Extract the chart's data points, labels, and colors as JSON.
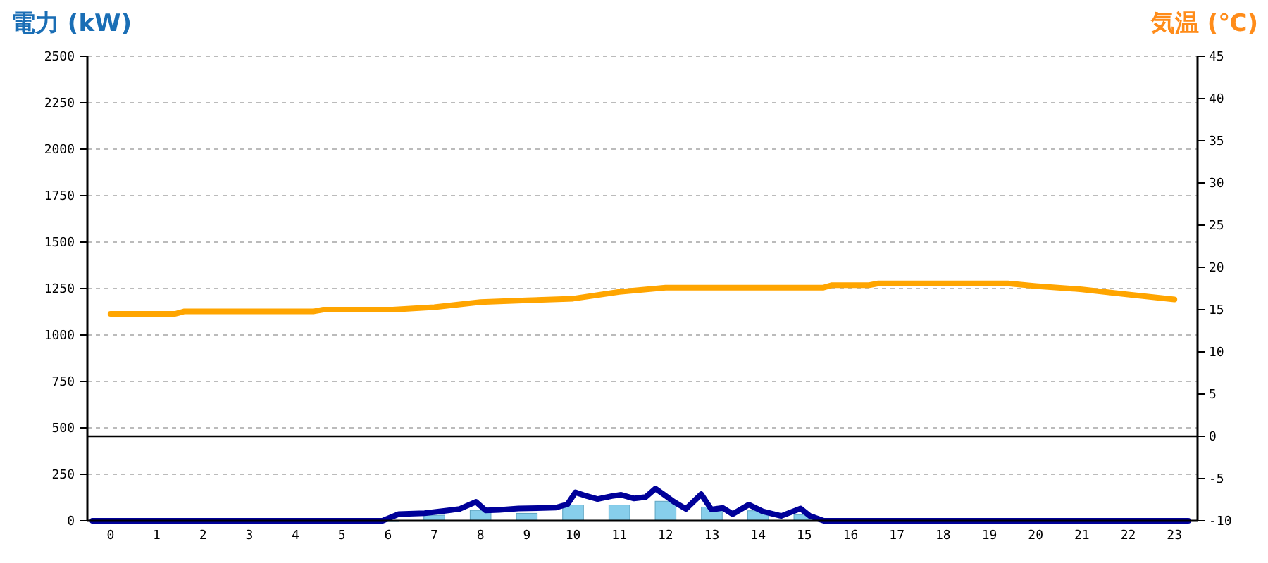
{
  "chart_data": {
    "type": "bar",
    "ylabel": "電力 (kW)",
    "y2label": "気温 (℃)",
    "x": [
      0,
      1,
      2,
      3,
      4,
      5,
      6,
      7,
      8,
      9,
      10,
      11,
      12,
      13,
      14,
      15,
      16,
      17,
      18,
      19,
      20,
      21,
      22,
      23
    ],
    "xlim": [
      -0.5,
      23.5
    ],
    "xticks": [
      0,
      1,
      2,
      3,
      4,
      5,
      6,
      7,
      8,
      9,
      10,
      11,
      12,
      13,
      14,
      15,
      16,
      17,
      18,
      19,
      20,
      21,
      22,
      23
    ],
    "ylim": [
      0,
      2500
    ],
    "yticks": [
      0,
      250,
      500,
      750,
      1000,
      1250,
      1500,
      1750,
      2000,
      2250,
      2500
    ],
    "y2lim": [
      -10,
      45
    ],
    "y2ticks": [
      -10,
      -5,
      0,
      5,
      10,
      15,
      20,
      25,
      30,
      35,
      40,
      45
    ],
    "grid": "y",
    "marker": "none",
    "line_style": "solid",
    "ref_lines": [
      {
        "axis": "y2",
        "value": 0,
        "color": "#000000"
      }
    ],
    "series": [
      {
        "color": "#87ceeb",
        "values": [
          0,
          0,
          0,
          0,
          0,
          0,
          0,
          30,
          56,
          40,
          85,
          85,
          105,
          74,
          54,
          33,
          0,
          0,
          0,
          0,
          0,
          0,
          0,
          0
        ]
      },
      {
        "type": "line",
        "color": "#000099",
        "x": [
          -0.39,
          5.88,
          6.23,
          6.79,
          7.3,
          7.55,
          7.9,
          8.11,
          8.41,
          8.82,
          9.63,
          9.88,
          10.05,
          10.23,
          10.53,
          10.84,
          11.04,
          11.32,
          11.57,
          11.78,
          11.98,
          12.18,
          12.44,
          12.77,
          12.99,
          13.24,
          13.45,
          13.8,
          14.1,
          14.5,
          14.92,
          15.12,
          15.42,
          23.3
        ],
        "values": [
          0,
          0,
          36,
          41,
          56,
          64,
          102,
          56,
          59,
          66,
          71,
          89,
          153,
          138,
          117,
          133,
          140,
          120,
          128,
          173,
          138,
          102,
          64,
          143,
          61,
          69,
          36,
          87,
          51,
          26,
          66,
          26,
          0,
          0
        ]
      },
      {
        "type": "line",
        "axis": "y2",
        "color": "#ffa500",
        "x": [
          0,
          1.4,
          1.6,
          4.4,
          4.6,
          6.1,
          7,
          8,
          9,
          10,
          11,
          12,
          15.4,
          15.6,
          16.4,
          16.6,
          19.4,
          20,
          21,
          22,
          23
        ],
        "values": [
          14.5,
          14.5,
          14.8,
          14.8,
          15,
          15,
          15.3,
          15.9,
          16.1,
          16.3,
          17.1,
          17.6,
          17.6,
          17.9,
          17.9,
          18.1,
          18.1,
          17.8,
          17.4,
          16.8,
          16.2
        ]
      }
    ]
  }
}
